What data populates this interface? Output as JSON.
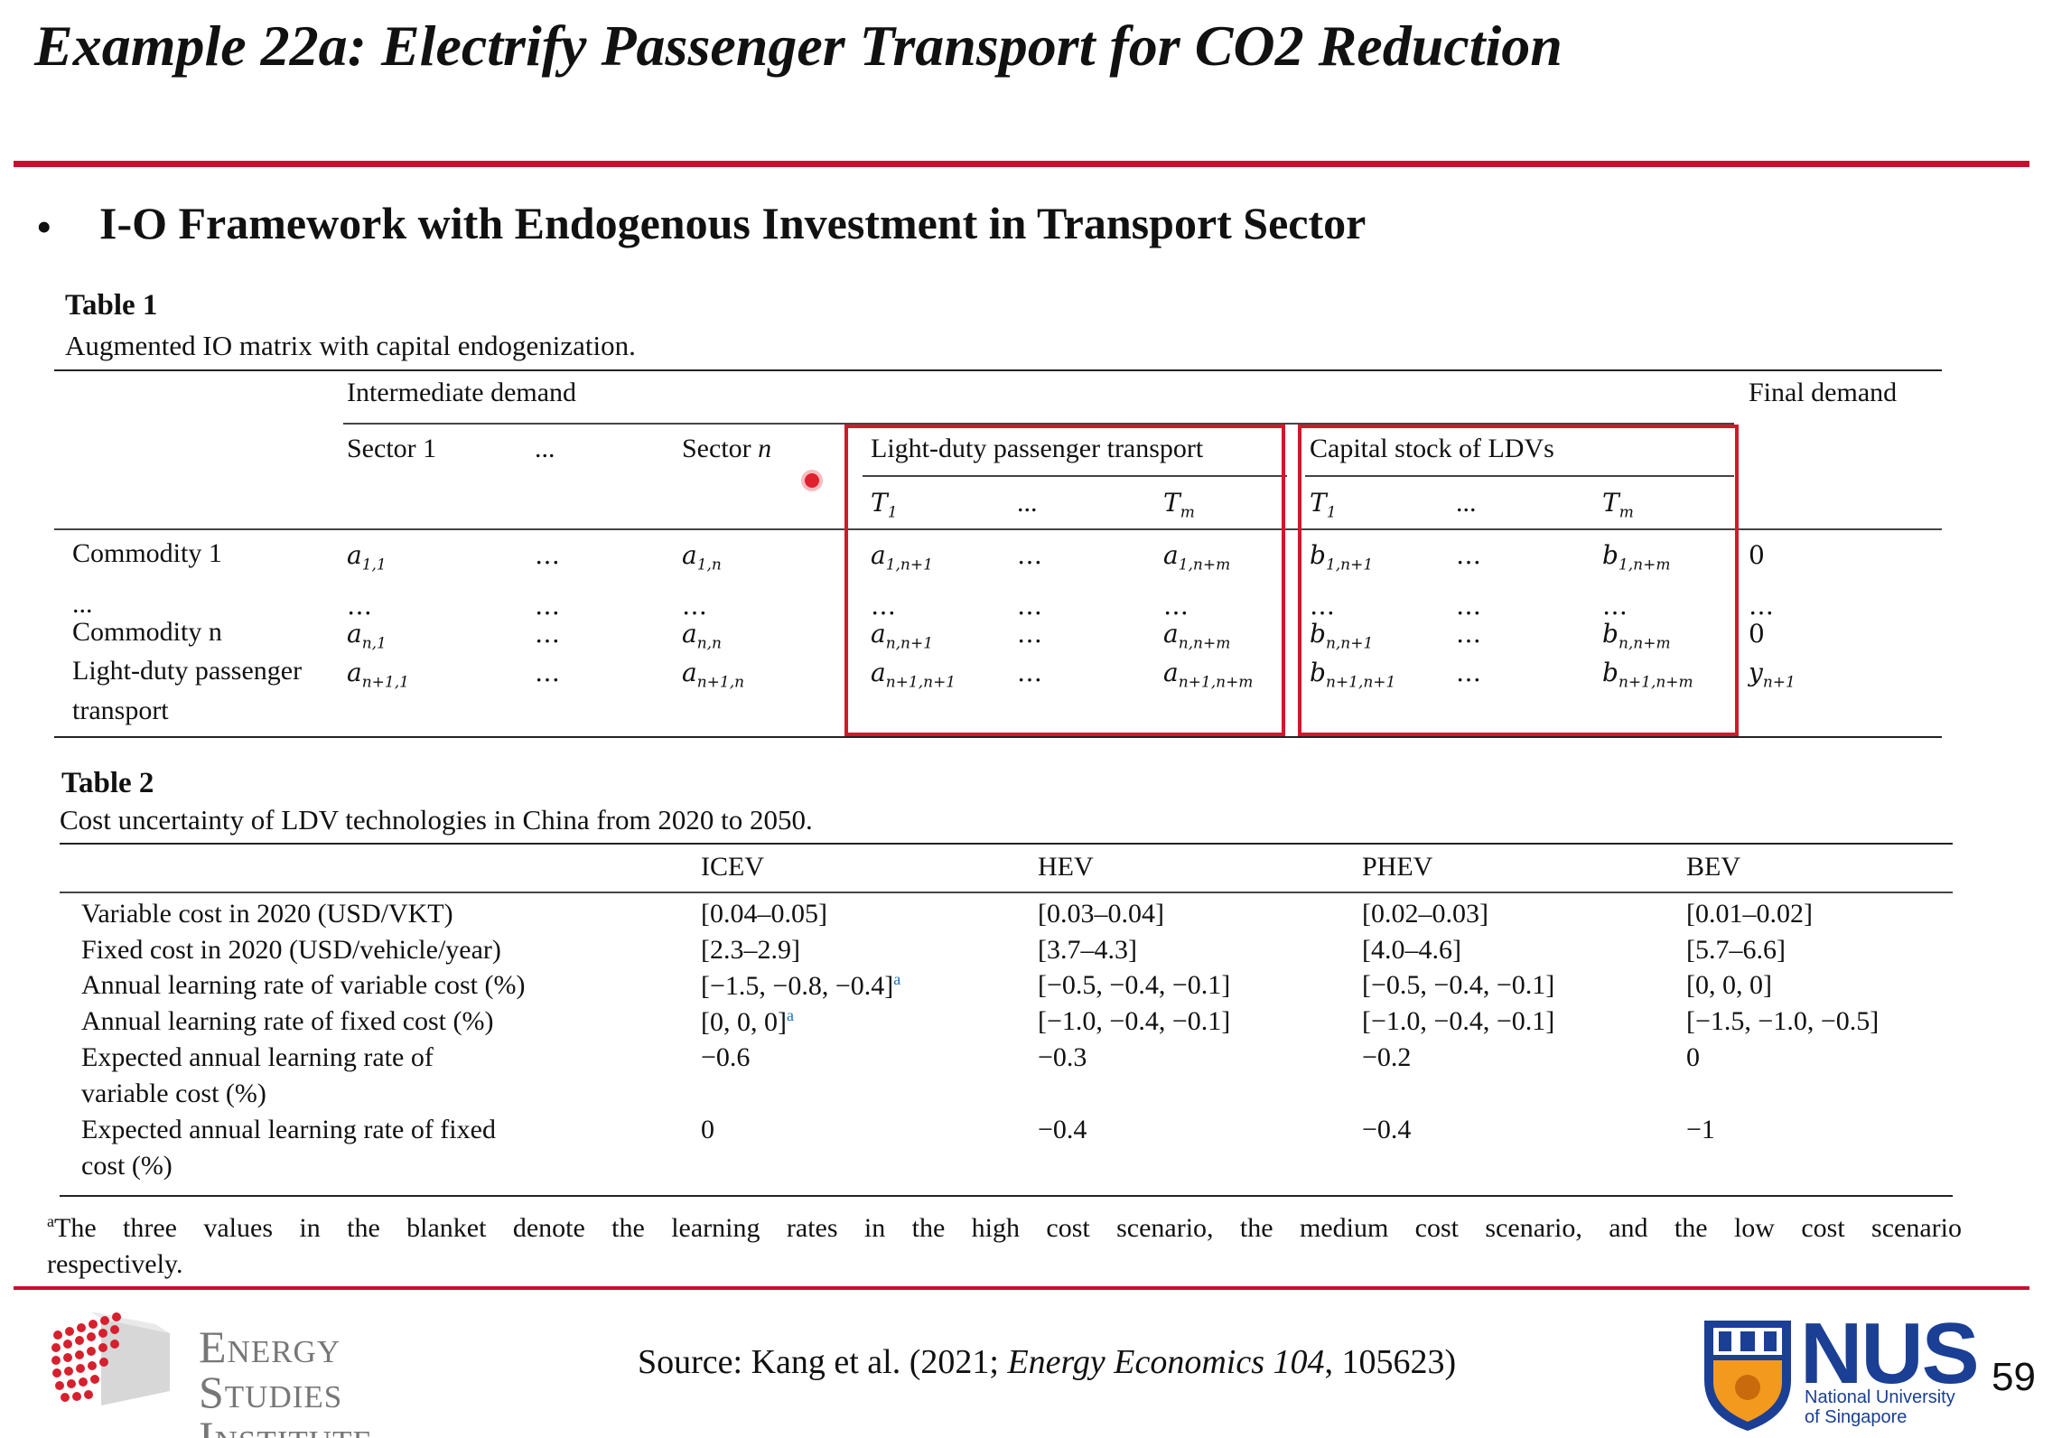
{
  "header": {
    "title": "Example 22a: Electrify Passenger Transport for CO2 Reduction",
    "bullet_symbol": "•",
    "bullet": "I-O Framework with Endogenous Investment in Transport Sector",
    "accent_color": "#c8102e"
  },
  "table1": {
    "label": "Table 1",
    "caption": "Augmented IO matrix with capital endogenization.",
    "group_intermediate": "Intermediate demand",
    "group_final": "Final demand",
    "col_sector1": "Sector 1",
    "col_dots": "...",
    "col_sector_n_prefix": "Sector",
    "col_sector_n_var": "n",
    "col_ldpt": "Light-duty passenger transport",
    "col_capital": "Capital stock of LDVs",
    "sub_t1": "T",
    "sub_t1_idx": "1",
    "sub_tm": "T",
    "sub_tm_idx": "m",
    "rows": [
      {
        "label": "Commodity 1",
        "cells": [
          [
            "a",
            "1,1"
          ],
          [
            "…",
            ""
          ],
          [
            "a",
            "1,n"
          ],
          [
            "a",
            "1,n+1"
          ],
          [
            "…",
            ""
          ],
          [
            "a",
            "1,n+m"
          ],
          [
            "b",
            "1,n+1"
          ],
          [
            "…",
            ""
          ],
          [
            "b",
            "1,n+m"
          ],
          [
            "0",
            ""
          ]
        ]
      },
      {
        "label": "...",
        "cells": [
          [
            "…",
            ""
          ],
          [
            "…",
            ""
          ],
          [
            "…",
            ""
          ],
          [
            "…",
            ""
          ],
          [
            "…",
            ""
          ],
          [
            "…",
            ""
          ],
          [
            "…",
            ""
          ],
          [
            "…",
            ""
          ],
          [
            "…",
            ""
          ],
          [
            "…",
            ""
          ]
        ]
      },
      {
        "label": "Commodity n",
        "cells": [
          [
            "a",
            "n,1"
          ],
          [
            "…",
            ""
          ],
          [
            "a",
            "n,n"
          ],
          [
            "a",
            "n,n+1"
          ],
          [
            "…",
            ""
          ],
          [
            "a",
            "n,n+m"
          ],
          [
            "b",
            "n,n+1"
          ],
          [
            "…",
            ""
          ],
          [
            "b",
            "n,n+m"
          ],
          [
            "0",
            ""
          ]
        ]
      },
      {
        "label": "Light-duty passenger",
        "label2": "transport",
        "cells": [
          [
            "a",
            "n+1,1"
          ],
          [
            "…",
            ""
          ],
          [
            "a",
            "n+1,n"
          ],
          [
            "a",
            "n+1,n+1"
          ],
          [
            "…",
            ""
          ],
          [
            "a",
            "n+1,n+m"
          ],
          [
            "b",
            "n+1,n+1"
          ],
          [
            "…",
            ""
          ],
          [
            "b",
            "n+1,n+m"
          ],
          [
            "y",
            "n+1"
          ]
        ]
      }
    ]
  },
  "table2": {
    "label": "Table 2",
    "caption": "Cost uncertainty of LDV technologies in China from 2020 to 2050.",
    "headers": [
      "ICEV",
      "HEV",
      "PHEV",
      "BEV"
    ],
    "rows": [
      {
        "label": "Variable cost in 2020 (USD/VKT)",
        "values": [
          "[0.04–0.05]",
          "[0.03–0.04]",
          "[0.02–0.03]",
          "[0.01–0.02]"
        ]
      },
      {
        "label": "Fixed cost in 2020 (USD/vehicle/year)",
        "values": [
          "[2.3–2.9]",
          "[3.7–4.3]",
          "[4.0–4.6]",
          "[5.7–6.6]"
        ]
      },
      {
        "label": "Annual learning rate of variable cost (%)",
        "values": [
          "[−1.5, −0.8, −0.4]",
          "[−0.5, −0.4, −0.1]",
          "[−0.5, −0.4, −0.1]",
          "[0, 0, 0]"
        ],
        "first_sup": "a"
      },
      {
        "label": "Annual learning rate of fixed cost (%)",
        "values": [
          "[0, 0, 0]",
          "[−1.0, −0.4, −0.1]",
          "[−1.0, −0.4, −0.1]",
          "[−1.5, −1.0, −0.5]"
        ],
        "first_sup": "a"
      },
      {
        "label": "Expected annual learning rate of",
        "label2": "variable cost (%)",
        "values": [
          "−0.6",
          "−0.3",
          "−0.2",
          "0"
        ]
      },
      {
        "label": "Expected annual learning rate of fixed",
        "label2": "cost (%)",
        "values": [
          "0",
          "−0.4",
          "−0.4",
          "−1"
        ]
      }
    ],
    "footnote_mark": "a",
    "footnote": "The three values in the blanket denote the learning rates in the high cost scenario, the medium cost scenario, and the low cost scenario",
    "footnote_line2": "respectively."
  },
  "footer": {
    "source_prefix": "Source: Kang et al. (2021; ",
    "source_journal": "Energy Economics 104",
    "source_suffix": ", 105623)",
    "esi_line1": "Energy",
    "esi_line2": "Studies",
    "esi_line3": "Institute",
    "nus": "NUS",
    "nus_sub1": "National University",
    "nus_sub2": "of Singapore",
    "page_number": "59"
  }
}
